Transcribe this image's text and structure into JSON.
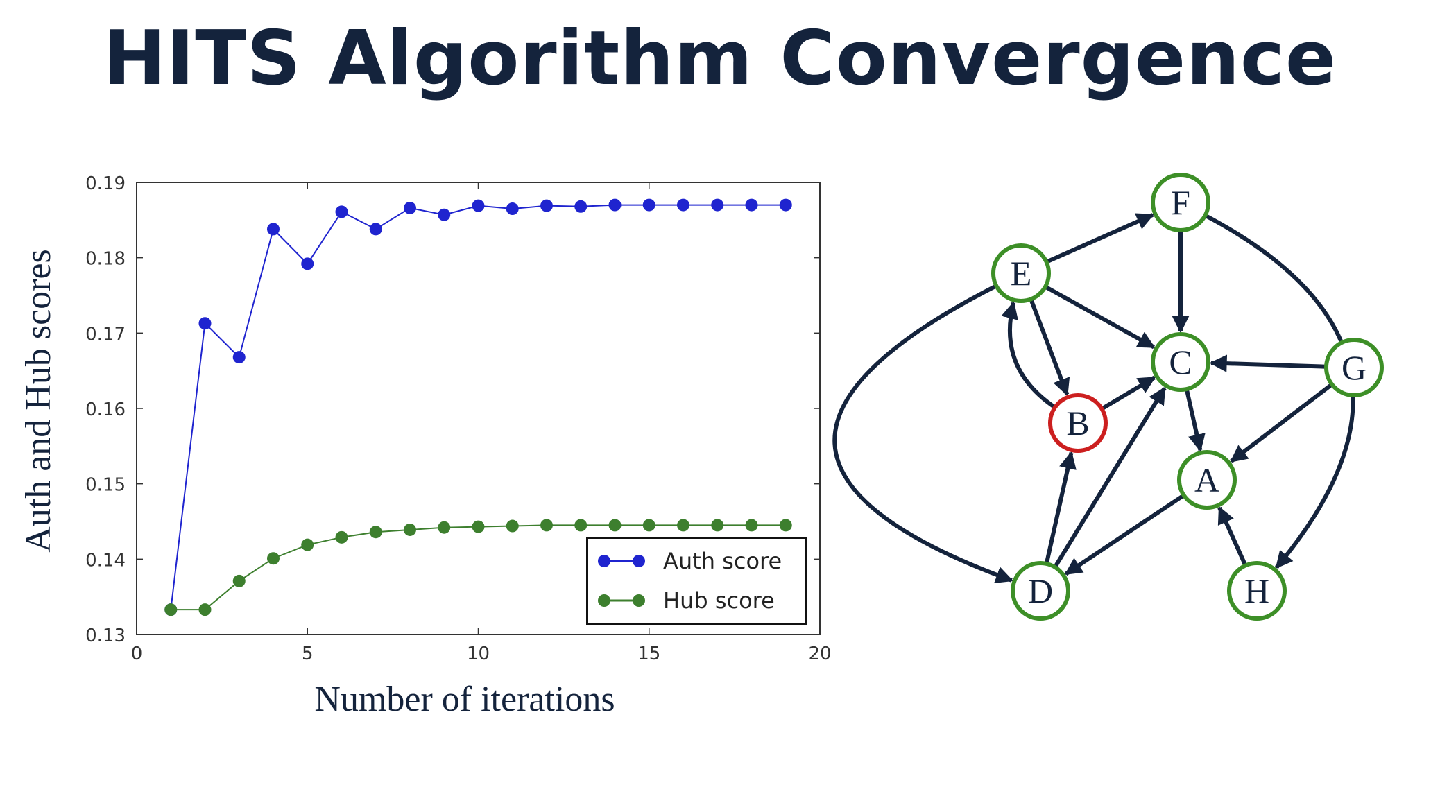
{
  "slide": {
    "title": "HITS Algorithm Convergence"
  },
  "chart_data": {
    "type": "line",
    "title": "",
    "xlabel": "Number of iterations",
    "ylabel": "Auth and Hub scores",
    "xlim": [
      0,
      20
    ],
    "ylim": [
      0.13,
      0.19
    ],
    "xticks": [
      "0",
      "5",
      "10",
      "15",
      "20"
    ],
    "yticks": [
      "0.13",
      "0.14",
      "0.15",
      "0.16",
      "0.17",
      "0.18",
      "0.19"
    ],
    "grid": false,
    "legend_position": "bottom-right",
    "x": [
      1,
      2,
      3,
      4,
      5,
      6,
      7,
      8,
      9,
      10,
      11,
      12,
      13,
      14,
      15,
      16,
      17,
      18,
      19
    ],
    "series": [
      {
        "name": "Auth score",
        "color": "#1f24cf",
        "values": [
          0.1333,
          0.1713,
          0.1668,
          0.1838,
          0.1792,
          0.1861,
          0.1838,
          0.1866,
          0.1857,
          0.1869,
          0.1865,
          0.1869,
          0.1868,
          0.187,
          0.187,
          0.187,
          0.187,
          0.187,
          0.187
        ]
      },
      {
        "name": "Hub score",
        "color": "#3d7f2e",
        "values": [
          0.1333,
          0.1333,
          0.1371,
          0.1401,
          0.1419,
          0.1429,
          0.1436,
          0.1439,
          0.1442,
          0.1443,
          0.1444,
          0.1445,
          0.1445,
          0.1445,
          0.1445,
          0.1445,
          0.1445,
          0.1445,
          0.1445
        ]
      }
    ]
  },
  "graph": {
    "edge_color": "#14233c",
    "normal_node_color": "#3d8f27",
    "highlight_node_color": "#cc1f1f",
    "nodes": [
      {
        "id": "A",
        "label": "A",
        "highlight": false
      },
      {
        "id": "B",
        "label": "B",
        "highlight": true
      },
      {
        "id": "C",
        "label": "C",
        "highlight": false
      },
      {
        "id": "D",
        "label": "D",
        "highlight": false
      },
      {
        "id": "E",
        "label": "E",
        "highlight": false
      },
      {
        "id": "F",
        "label": "F",
        "highlight": false
      },
      {
        "id": "G",
        "label": "G",
        "highlight": false
      },
      {
        "id": "H",
        "label": "H",
        "highlight": false
      }
    ],
    "edges": [
      {
        "from": "E",
        "to": "F"
      },
      {
        "from": "E",
        "to": "C"
      },
      {
        "from": "E",
        "to": "B"
      },
      {
        "from": "E",
        "to": "D"
      },
      {
        "from": "F",
        "to": "C"
      },
      {
        "from": "F",
        "to": "H"
      },
      {
        "from": "B",
        "to": "E"
      },
      {
        "from": "B",
        "to": "C"
      },
      {
        "from": "C",
        "to": "A"
      },
      {
        "from": "G",
        "to": "C"
      },
      {
        "from": "G",
        "to": "A"
      },
      {
        "from": "D",
        "to": "B"
      },
      {
        "from": "D",
        "to": "C"
      },
      {
        "from": "A",
        "to": "D"
      },
      {
        "from": "H",
        "to": "A"
      }
    ]
  }
}
